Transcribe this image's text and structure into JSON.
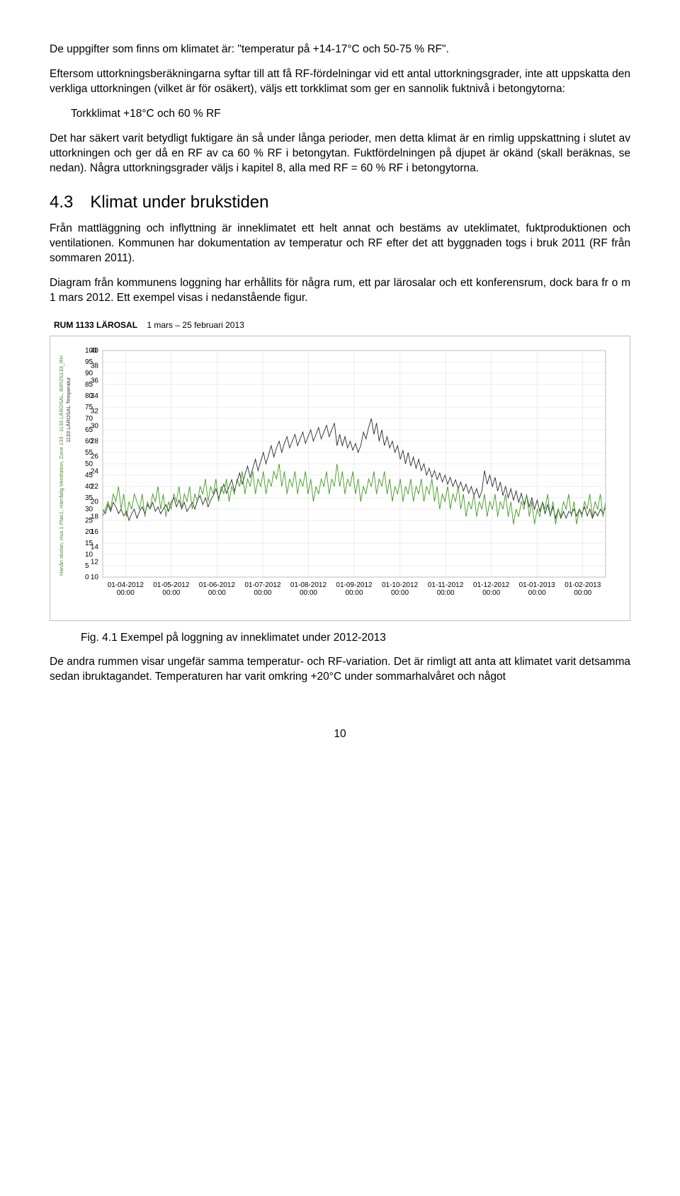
{
  "para1": "De uppgifter som finns om klimatet är: \"temperatur på +14-17°C och 50-75 % RF\".",
  "para2": "Eftersom uttorkningsberäkningarna syftar till att få RF-fördelningar vid ett antal uttorkningsgrader, inte att uppskatta den verkliga uttorkningen (vilket är för osäkert), väljs ett torkklimat som ger en sannolik fuktnivå i betongytorna:",
  "indent1": "Torkklimat +18°C och 60 % RF",
  "para3": "Det har säkert varit betydligt fuktigare än så under långa perioder, men detta klimat är en rimlig uppskattning i slutet av uttorkningen och ger då en RF av ca 60 % RF i betongytan. Fuktfördelningen på djupet är okänd (skall beräknas, se nedan). Några uttorkningsgrader väljs i kapitel 8, alla med RF = 60 % RF i betongytorna.",
  "h2": "4.3 Klimat under brukstiden",
  "para4": "Från mattläggning och inflyttning är inneklimatet ett helt annat och bestäms av uteklimatet, fuktproduktionen och ventilationen. Kommunen har dokumentation av temperatur och RF efter det att byggnaden togs i bruk 2011 (RF från sommaren 2011).",
  "para5": "Diagram från kommunens loggning har erhållits för några rum, ett par lärosalar och ett konferensrum, dock bara fr o m 1 mars 2012. Ett exempel visas i nedanstående figur.",
  "chart_title_bold": "RUM 1133 LÄROSAL",
  "chart_title_rest": "1 mars – 25 februari 2013",
  "fig_caption": "Fig. 4.1 Exempel på loggning av inneklimatet under 2012-2013",
  "para6": "De andra rummen visar ungefär samma temperatur- och RF-variation. Det är rimligt att anta att klimatet varit detsamma sedan ibruktagandet. Temperaturen har varit omkring +20°C under sommarhalvåret och något",
  "page_num": "10",
  "chart": {
    "plot_bg": "#ffffff",
    "border_color": "#bfbfbf",
    "grid_color": "#d9d9d9",
    "left_axis_color": "#000000",
    "rf_line_color": "#2b2b2b",
    "temp_line_color": "#3f9a1f",
    "left_ticks": [
      100,
      95,
      90,
      85,
      80,
      75,
      70,
      65,
      60,
      55,
      50,
      45,
      40,
      35,
      30,
      25,
      20,
      15,
      10,
      5,
      0
    ],
    "right_ticks": [
      40,
      38,
      36,
      34,
      32,
      30,
      28,
      26,
      24,
      22,
      20,
      18,
      16,
      14,
      12,
      10
    ],
    "x_ticks": [
      "01-04-2012",
      "01-05-2012",
      "01-06-2012",
      "01-07-2012",
      "01-08-2012",
      "01-09-2012",
      "01-10-2012",
      "01-11-2012",
      "01-12-2012",
      "01-01-2013",
      "01-02-2013"
    ],
    "x_sub": "00:00",
    "vert_label_left_green": "Hanån skolan, Hus 1 Plan1, Härrådig Ventilation, Zone 133 - 1133 LÄROSAL, BIPI2S133_RH",
    "vert_label_right_black": "1133 LÄROSAL Temperatur",
    "rf_series": [
      30,
      28,
      32,
      29,
      33,
      31,
      28,
      30,
      27,
      29,
      25,
      28,
      30,
      26,
      29,
      31,
      28,
      32,
      30,
      33,
      29,
      31,
      28,
      30,
      32,
      29,
      33,
      35,
      31,
      34,
      30,
      33,
      29,
      31,
      33,
      30,
      34,
      36,
      32,
      35,
      31,
      34,
      36,
      39,
      35,
      38,
      41,
      37,
      40,
      43,
      38,
      42,
      46,
      41,
      45,
      49,
      44,
      48,
      52,
      47,
      51,
      55,
      50,
      54,
      58,
      53,
      57,
      60,
      55,
      59,
      62,
      57,
      60,
      63,
      58,
      61,
      64,
      59,
      62,
      65,
      60,
      63,
      66,
      61,
      64,
      67,
      62,
      65,
      68,
      58,
      63,
      58,
      62,
      57,
      60,
      56,
      59,
      55,
      58,
      64,
      61,
      66,
      70,
      63,
      68,
      60,
      65,
      58,
      62,
      57,
      60,
      55,
      58,
      52,
      56,
      50,
      55,
      49,
      53,
      48,
      52,
      47,
      50,
      45,
      48,
      44,
      47,
      43,
      46,
      42,
      45,
      41,
      44,
      40,
      43,
      39,
      42,
      38,
      41,
      37,
      40,
      36,
      39,
      35,
      38,
      47,
      41,
      45,
      40,
      44,
      38,
      42,
      36,
      40,
      35,
      39,
      34,
      38,
      33,
      37,
      32,
      36,
      31,
      35,
      30,
      34,
      29,
      33,
      28,
      32,
      27,
      31,
      26,
      30,
      26,
      29,
      26,
      29,
      28,
      30,
      27,
      30,
      28,
      31,
      27,
      30,
      26,
      29,
      27,
      30,
      28,
      31
    ],
    "temp_series": [
      18,
      19,
      20,
      19,
      21,
      20,
      22,
      19,
      21,
      18,
      20,
      19,
      21,
      20,
      19,
      21,
      18,
      20,
      19,
      21,
      20,
      22,
      19,
      21,
      18,
      20,
      19,
      21,
      20,
      22,
      19,
      21,
      20,
      22,
      19,
      21,
      20,
      22,
      21,
      23,
      20,
      22,
      21,
      23,
      20,
      22,
      21,
      23,
      20,
      22,
      21,
      23,
      22,
      24,
      21,
      23,
      22,
      24,
      21,
      23,
      22,
      24,
      21,
      23,
      22,
      24,
      23,
      25,
      22,
      24,
      21,
      23,
      22,
      24,
      21,
      23,
      22,
      24,
      21,
      23,
      20,
      22,
      21,
      23,
      22,
      24,
      21,
      23,
      22,
      25,
      22,
      24,
      21,
      23,
      22,
      24,
      21,
      23,
      20,
      22,
      21,
      23,
      22,
      24,
      21,
      23,
      22,
      24,
      21,
      23,
      20,
      22,
      21,
      23,
      20,
      22,
      21,
      23,
      20,
      22,
      21,
      23,
      20,
      22,
      21,
      23,
      20,
      22,
      19,
      21,
      20,
      22,
      19,
      21,
      20,
      22,
      19,
      21,
      18,
      20,
      19,
      21,
      18,
      20,
      19,
      21,
      18,
      20,
      19,
      21,
      18,
      20,
      19,
      21,
      18,
      20,
      17,
      19,
      18,
      20,
      19,
      21,
      18,
      20,
      17,
      19,
      18,
      20,
      19,
      21,
      18,
      20,
      17,
      19,
      18,
      20,
      19,
      21,
      18,
      20,
      17,
      19,
      18,
      20,
      19,
      21,
      18,
      20,
      19,
      21,
      18,
      20
    ]
  }
}
